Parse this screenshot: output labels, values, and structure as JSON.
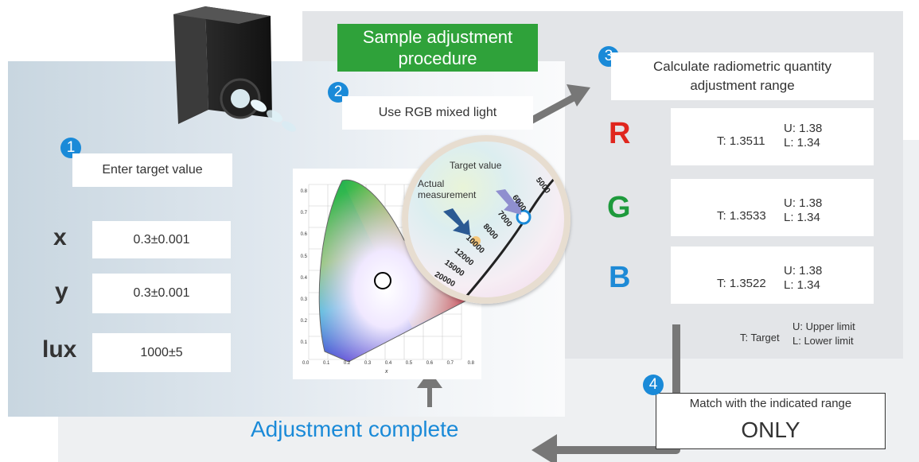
{
  "title": "Sample adjustment procedure",
  "steps": {
    "s1": {
      "num": "1",
      "label": "Enter target value"
    },
    "s2": {
      "num": "2",
      "label": "Use RGB mixed light"
    },
    "s3": {
      "num": "3",
      "label": "Calculate radiometric quantity adjustment range"
    },
    "s4": {
      "num": "4",
      "label": "Match with the indicated range",
      "emph": "ONLY"
    }
  },
  "targets": [
    {
      "name": "x",
      "value": "0.3±0.001"
    },
    {
      "name": "y",
      "value": "0.3±0.001"
    },
    {
      "name": "lux",
      "value": "1000±5"
    }
  ],
  "channels": [
    {
      "name": "R",
      "color": "#e0261e",
      "target": "T: 1.3511",
      "upper": "U: 1.38",
      "lower": "L: 1.34"
    },
    {
      "name": "G",
      "color": "#1e9a3c",
      "target": "T: 1.3533",
      "upper": "U: 1.38",
      "lower": "L: 1.34"
    },
    {
      "name": "B",
      "color": "#1e8ad6",
      "target": "T: 1.3522",
      "upper": "U: 1.38",
      "lower": "L: 1.34"
    }
  ],
  "legend": {
    "target": "T: Target",
    "upper": "U: Upper limit",
    "lower": "L: Lower limit"
  },
  "zoom": {
    "target_label": "Target value",
    "actual_label": "Actual measurement",
    "ticks": [
      "5000",
      "6000",
      "7000",
      "8000",
      "10000",
      "12000",
      "15000",
      "20000"
    ]
  },
  "chart": {
    "yticks": [
      "0.8",
      "0.7",
      "0.6",
      "0.5",
      "0.4",
      "0.3",
      "0.2",
      "0.1",
      "0.0"
    ],
    "xticks": [
      "0.0",
      "0.1",
      "0.2",
      "0.3",
      "0.4",
      "0.5",
      "0.6",
      "0.7",
      "0.8"
    ],
    "xlabel": "x"
  },
  "done": "Adjustment complete",
  "colors": {
    "accent": "#1a8ad8",
    "title_bg": "#2fa23a",
    "arrow": "#737373"
  }
}
